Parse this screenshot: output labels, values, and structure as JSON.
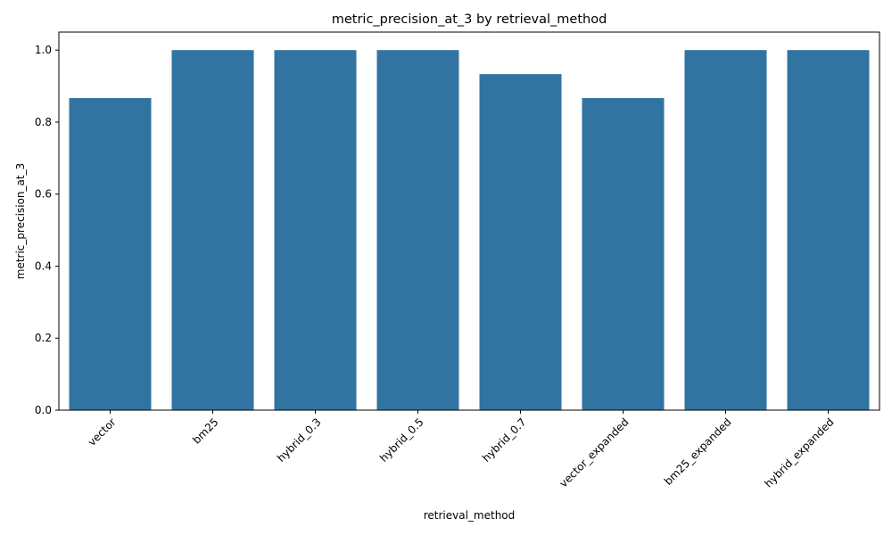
{
  "chart_data": {
    "type": "bar",
    "title": "metric_precision_at_3 by retrieval_method",
    "xlabel": "retrieval_method",
    "ylabel": "metric_precision_at_3",
    "categories": [
      "vector",
      "bm25",
      "hybrid_0.3",
      "hybrid_0.5",
      "hybrid_0.7",
      "vector_expanded",
      "bm25_expanded",
      "hybrid_expanded"
    ],
    "values": [
      0.8667,
      1.0,
      1.0,
      1.0,
      0.9333,
      0.8667,
      1.0,
      1.0
    ],
    "ylim": [
      0,
      1.05
    ],
    "yticks": [
      "0.0",
      "0.2",
      "0.4",
      "0.6",
      "0.8",
      "1.0"
    ],
    "bar_color": "#3274a1",
    "grid": false,
    "legend": "none"
  }
}
